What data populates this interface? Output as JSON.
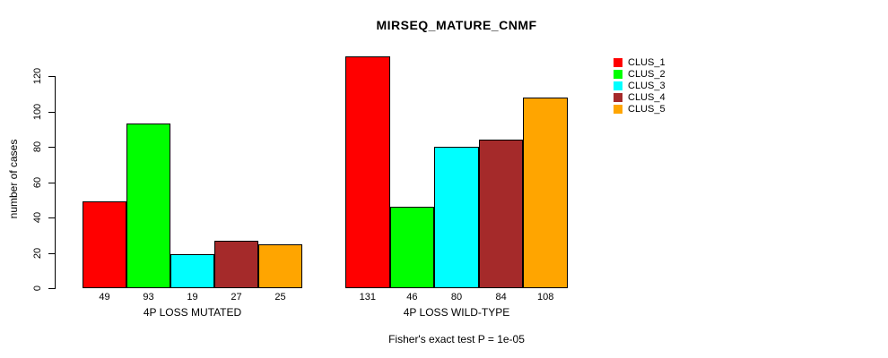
{
  "chart_data": {
    "type": "bar",
    "title": "MIRSEQ_MATURE_CNMF",
    "ylabel": "number of cases",
    "xlabel": "",
    "footnote": "Fisher's exact test P = 1e-05",
    "legend_entries": [
      "CLUS_1",
      "CLUS_2",
      "CLUS_3",
      "CLUS_4",
      "CLUS_5"
    ],
    "series_colors": [
      "#ff0000",
      "#00ff00",
      "#00ffff",
      "#a52a2a",
      "#ffa500"
    ],
    "groups": [
      {
        "label": "4P LOSS MUTATED",
        "values": [
          49,
          93,
          19,
          27,
          25
        ]
      },
      {
        "label": "4P LOSS WILD-TYPE",
        "values": [
          131,
          46,
          80,
          84,
          108
        ]
      }
    ],
    "yticks": [
      0,
      20,
      40,
      60,
      80,
      100,
      120
    ],
    "ylim": [
      0,
      120
    ],
    "grid": false,
    "legend_position": "right-outside",
    "bar_border_color": "#000000",
    "background_color": "#ffffff"
  }
}
